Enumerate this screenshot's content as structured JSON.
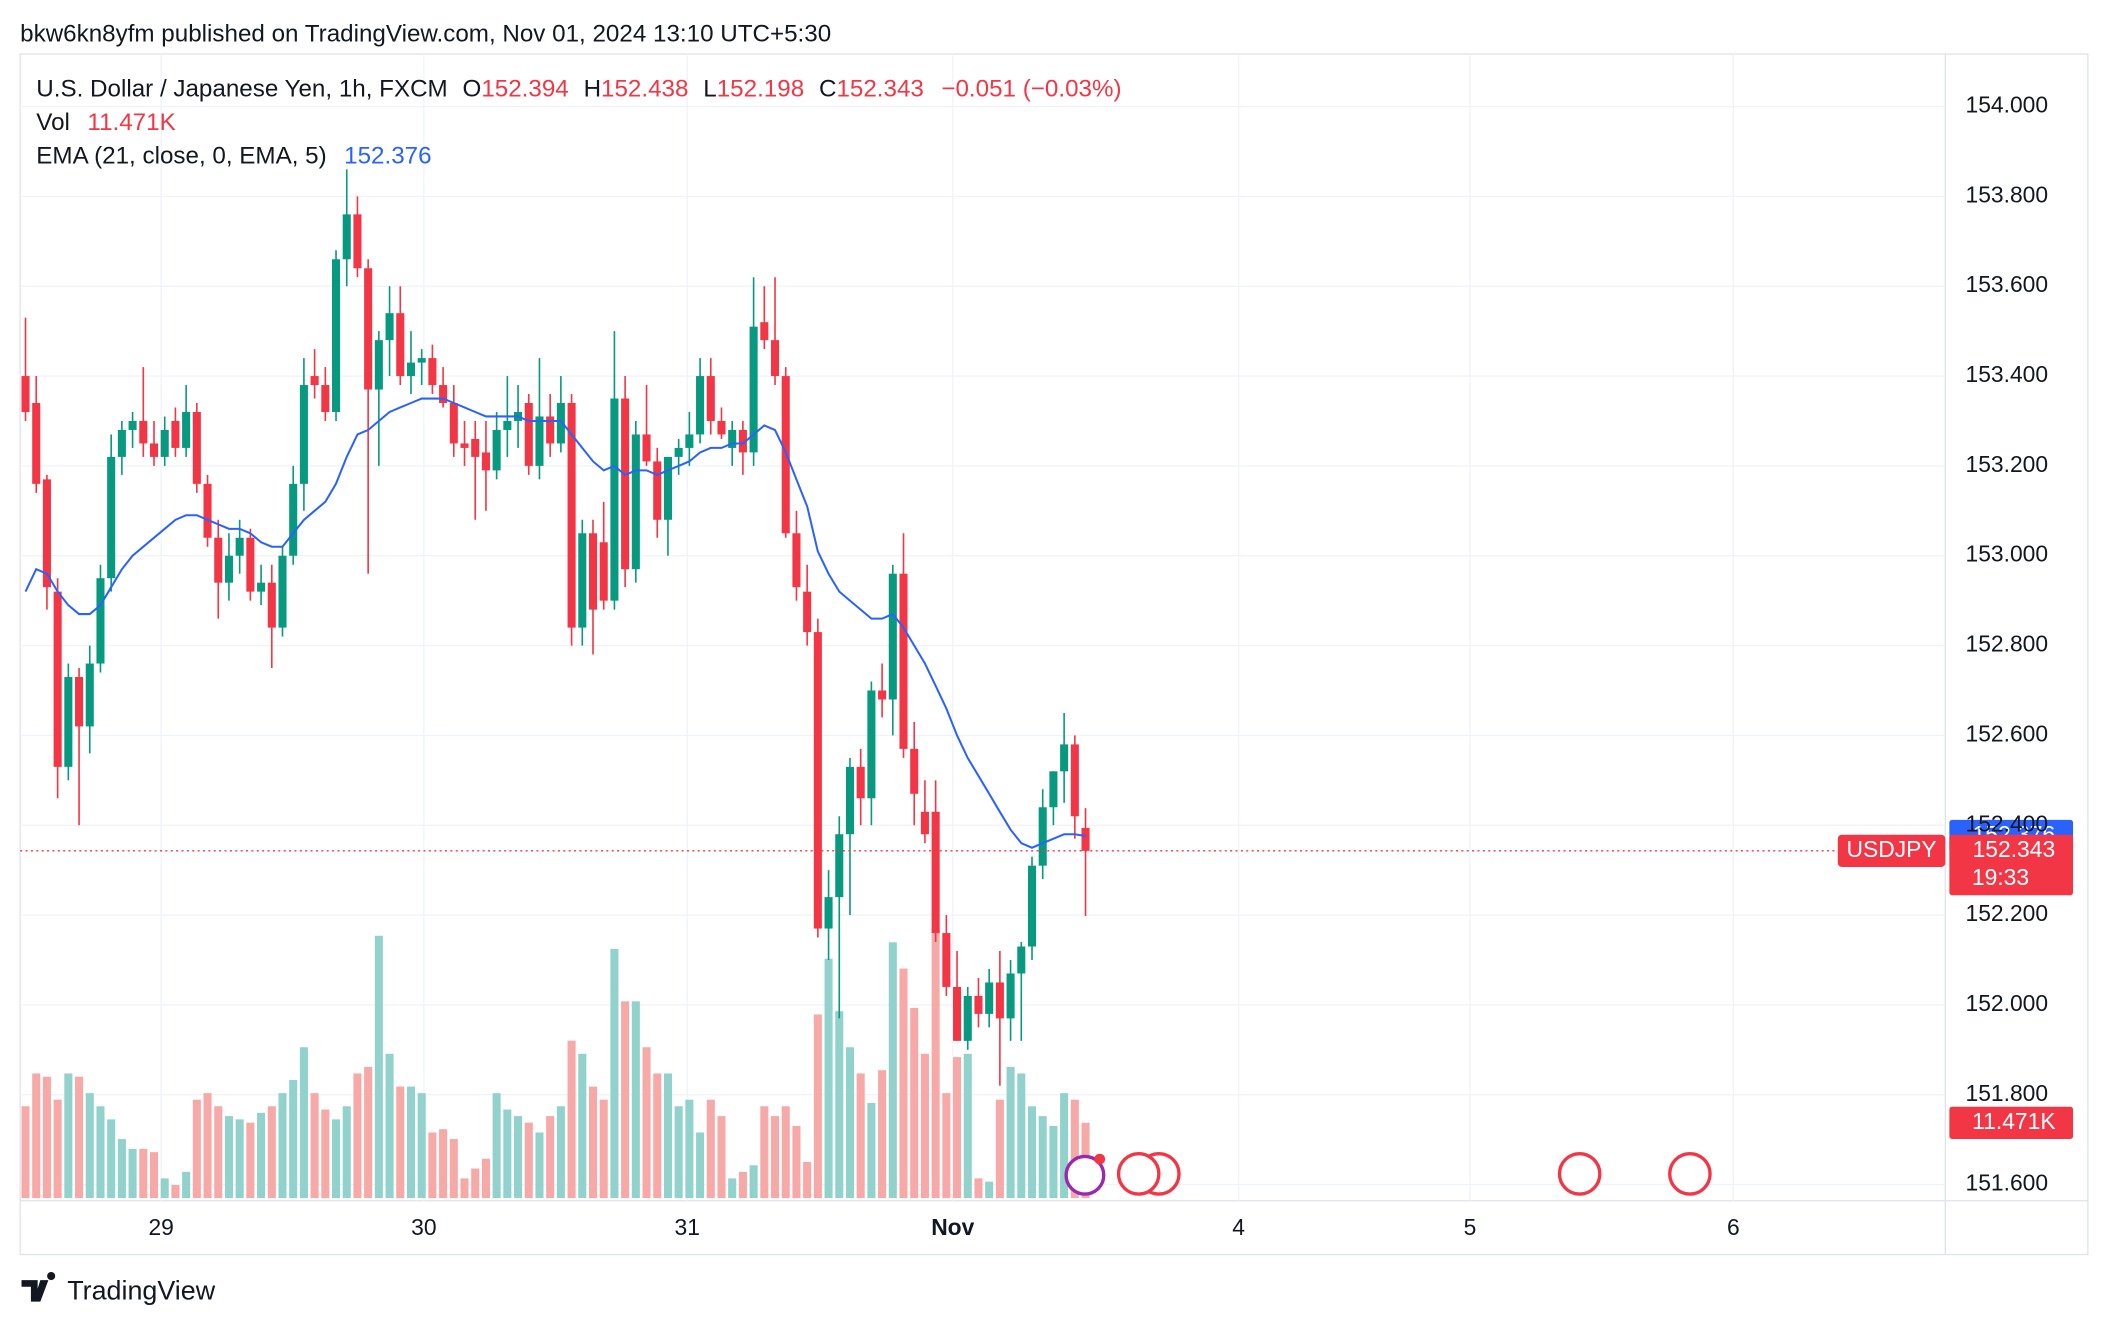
{
  "header": {
    "publisher": "bkw6kn8yfm published on TradingView.com, Nov 01, 2024 13:10 UTC+5:30"
  },
  "footer": {
    "logo": "TradingView"
  },
  "chart_data": {
    "type": "candlestick",
    "symbol_title": "U.S. Dollar / Japanese Yen, 1h, FXCM",
    "symbol": "USDJPY",
    "legend_labels": {
      "open": "O",
      "high": "H",
      "low": "L",
      "close": "C"
    },
    "change_label": "−0.051 (−0.03%)",
    "volume_title": "Vol",
    "volume_last_label": "11.471K",
    "ema_title": "EMA (21, close, 0, EMA, 5)",
    "countdown": "19:33",
    "up_color": "#089981",
    "down_color": "#f23645",
    "up_volume_color": "#92d2cc",
    "down_volume_color": "#f7a9a7",
    "ema_color": "#2962ff",
    "grid": true,
    "open": [
      153.4,
      153.34,
      153.17,
      152.92,
      152.53,
      152.73,
      152.62,
      152.76,
      152.95,
      153.22,
      153.28,
      153.3,
      153.25,
      153.22,
      153.3,
      153.24,
      153.32,
      153.16,
      153.04,
      152.94,
      153.0,
      153.04,
      152.92,
      152.94,
      152.84,
      153.0,
      153.16,
      153.4,
      153.38,
      153.32,
      153.66,
      153.76,
      153.64,
      153.37,
      153.48,
      153.54,
      153.4,
      153.43,
      153.44,
      153.38,
      153.34,
      153.25,
      153.26,
      153.23,
      153.19,
      153.28,
      153.3,
      153.34,
      153.2,
      153.31,
      153.25,
      153.34,
      152.84,
      153.05,
      153.03,
      152.9,
      153.35,
      152.97,
      153.27,
      153.21,
      153.08,
      153.22,
      153.24,
      153.27,
      153.4,
      153.3,
      153.24,
      153.28,
      153.23,
      153.52,
      153.48,
      153.4,
      153.05,
      152.92,
      152.83,
      152.17,
      152.24,
      152.38,
      152.53,
      152.46,
      152.7,
      152.68,
      152.96,
      152.57,
      152.43,
      152.43,
      152.16,
      152.04,
      151.92,
      152.02,
      151.98,
      152.05,
      151.97,
      152.07,
      152.13,
      152.31,
      152.44,
      152.52,
      152.58,
      152.394
    ],
    "high": [
      153.53,
      153.4,
      153.18,
      152.95,
      152.76,
      152.75,
      152.8,
      152.98,
      153.27,
      153.3,
      153.32,
      153.42,
      153.3,
      153.31,
      153.33,
      153.38,
      153.34,
      153.18,
      153.08,
      153.05,
      153.08,
      153.06,
      152.98,
      152.98,
      153.02,
      153.2,
      153.44,
      153.46,
      153.42,
      153.68,
      153.86,
      153.8,
      153.66,
      153.5,
      153.6,
      153.6,
      153.5,
      153.46,
      153.47,
      153.42,
      153.38,
      153.3,
      153.3,
      153.3,
      153.32,
      153.4,
      153.38,
      153.36,
      153.44,
      153.36,
      153.4,
      153.36,
      153.08,
      153.08,
      153.12,
      153.5,
      153.4,
      153.3,
      153.38,
      153.24,
      153.22,
      153.26,
      153.32,
      153.44,
      153.44,
      153.33,
      153.3,
      153.3,
      153.62,
      153.6,
      153.62,
      153.42,
      153.1,
      152.98,
      152.86,
      152.3,
      152.42,
      152.55,
      152.57,
      152.72,
      152.76,
      152.98,
      153.05,
      152.63,
      152.5,
      152.5,
      152.2,
      152.12,
      152.04,
      152.06,
      152.08,
      152.12,
      152.1,
      152.14,
      152.33,
      152.48,
      152.52,
      152.65,
      152.6,
      152.438
    ],
    "low": [
      153.3,
      153.14,
      152.88,
      152.46,
      152.5,
      152.4,
      152.56,
      152.74,
      152.92,
      153.18,
      153.24,
      153.22,
      153.2,
      153.2,
      153.22,
      153.22,
      153.14,
      153.02,
      152.86,
      152.9,
      152.96,
      152.9,
      152.89,
      152.75,
      152.82,
      152.98,
      153.1,
      153.35,
      153.3,
      153.3,
      153.6,
      153.62,
      152.96,
      153.2,
      153.4,
      153.38,
      153.36,
      153.38,
      153.36,
      153.33,
      153.22,
      153.2,
      153.08,
      153.1,
      153.17,
      153.22,
      153.24,
      153.18,
      153.17,
      153.22,
      153.23,
      152.8,
      152.8,
      152.78,
      152.88,
      152.88,
      152.93,
      152.94,
      153.2,
      153.04,
      153.0,
      153.18,
      153.2,
      153.25,
      153.27,
      153.26,
      153.2,
      153.18,
      153.2,
      153.46,
      153.38,
      153.04,
      152.9,
      152.8,
      152.15,
      152.1,
      151.97,
      152.2,
      152.4,
      152.4,
      152.64,
      152.6,
      152.55,
      152.4,
      152.36,
      152.14,
      152.02,
      151.92,
      151.9,
      151.95,
      151.95,
      151.82,
      151.92,
      151.92,
      152.1,
      152.28,
      152.4,
      152.45,
      152.37,
      152.198
    ],
    "close": [
      153.32,
      153.16,
      152.93,
      152.53,
      152.73,
      152.62,
      152.76,
      152.95,
      153.22,
      153.28,
      153.3,
      153.25,
      153.22,
      153.28,
      153.24,
      153.32,
      153.16,
      153.04,
      152.94,
      153.0,
      153.04,
      152.92,
      152.94,
      152.84,
      153.0,
      153.16,
      153.38,
      153.38,
      153.32,
      153.66,
      153.76,
      153.64,
      153.37,
      153.48,
      153.54,
      153.4,
      153.43,
      153.44,
      153.38,
      153.34,
      153.25,
      153.24,
      153.22,
      153.19,
      153.28,
      153.3,
      153.32,
      153.2,
      153.31,
      153.25,
      153.34,
      152.84,
      153.05,
      152.88,
      152.9,
      153.35,
      152.97,
      153.27,
      153.21,
      153.08,
      153.22,
      153.24,
      153.27,
      153.4,
      153.3,
      153.27,
      153.28,
      153.23,
      153.51,
      153.48,
      153.4,
      153.05,
      152.93,
      152.83,
      152.17,
      152.24,
      152.38,
      152.53,
      152.46,
      152.7,
      152.68,
      152.96,
      152.57,
      152.47,
      152.38,
      152.16,
      152.04,
      151.92,
      152.02,
      151.98,
      152.05,
      151.97,
      152.07,
      152.13,
      152.31,
      152.44,
      152.52,
      152.58,
      152.42,
      152.343
    ],
    "volume": [
      14000,
      19000,
      18500,
      15000,
      19000,
      18500,
      16000,
      14000,
      12000,
      9000,
      7500,
      7500,
      7000,
      3000,
      2000,
      4000,
      15000,
      16000,
      14000,
      12500,
      12000,
      11500,
      13000,
      14000,
      16000,
      18000,
      23000,
      16000,
      13500,
      12000,
      14000,
      19000,
      20000,
      40000,
      22000,
      17000,
      17000,
      16000,
      10000,
      10500,
      9000,
      3000,
      4500,
      6000,
      16000,
      13500,
      12500,
      11500,
      10000,
      12500,
      14000,
      24000,
      22000,
      17000,
      15000,
      38000,
      30000,
      30000,
      23000,
      19000,
      19000,
      14000,
      15000,
      10000,
      15000,
      12500,
      3000,
      4000,
      5000,
      14000,
      12500,
      14000,
      11000,
      5500,
      28000,
      36500,
      28500,
      23000,
      19000,
      14500,
      19500,
      39000,
      35000,
      29000,
      22000,
      41000,
      16000,
      21500,
      22000,
      3000,
      2500,
      15000,
      20000,
      19000,
      14000,
      12500,
      11000,
      16000,
      15000,
      11471
    ],
    "ema": [
      152.92,
      152.97,
      152.96,
      152.92,
      152.89,
      152.87,
      152.87,
      152.89,
      152.93,
      152.97,
      153.0,
      153.02,
      153.04,
      153.06,
      153.08,
      153.09,
      153.09,
      153.08,
      153.07,
      153.06,
      153.06,
      153.05,
      153.03,
      153.02,
      153.02,
      153.05,
      153.08,
      153.1,
      153.12,
      153.16,
      153.22,
      153.27,
      153.28,
      153.3,
      153.32,
      153.33,
      153.34,
      153.35,
      153.35,
      153.35,
      153.34,
      153.33,
      153.32,
      153.31,
      153.31,
      153.31,
      153.31,
      153.3,
      153.3,
      153.3,
      153.3,
      153.27,
      153.24,
      153.21,
      153.19,
      153.2,
      153.18,
      153.19,
      153.19,
      153.18,
      153.19,
      153.2,
      153.21,
      153.23,
      153.24,
      153.24,
      153.25,
      153.25,
      153.27,
      153.29,
      153.28,
      153.23,
      153.17,
      153.11,
      153.01,
      152.96,
      152.92,
      152.9,
      152.88,
      152.86,
      152.86,
      152.87,
      152.84,
      152.8,
      152.76,
      152.71,
      152.66,
      152.6,
      152.55,
      152.51,
      152.47,
      152.43,
      152.39,
      152.36,
      152.35,
      152.36,
      152.37,
      152.38,
      152.38,
      152.376
    ],
    "xlim": [
      -0.5,
      179.3
    ],
    "xticks": [
      {
        "value": 12.67,
        "label": "29"
      },
      {
        "value": 37.2,
        "label": "30"
      },
      {
        "value": 61.8,
        "label": "31"
      },
      {
        "value": 86.6,
        "label": "Nov"
      },
      {
        "value": 113.3,
        "label": "4"
      },
      {
        "value": 134.9,
        "label": "5"
      },
      {
        "value": 159.5,
        "label": "6"
      }
    ],
    "ylim": [
      151.564,
      154.117
    ],
    "yticks": [
      {
        "value": 151.6,
        "label": "151.600"
      },
      {
        "value": 151.8,
        "label": "151.800"
      },
      {
        "value": 152.0,
        "label": "152.000"
      },
      {
        "value": 152.2,
        "label": "152.200"
      },
      {
        "value": 152.4,
        "label": "152.400"
      },
      {
        "value": 152.6,
        "label": "152.600"
      },
      {
        "value": 152.8,
        "label": "152.800"
      },
      {
        "value": 153.0,
        "label": "153.000"
      },
      {
        "value": 153.2,
        "label": "153.200"
      },
      {
        "value": 153.4,
        "label": "153.400"
      },
      {
        "value": 153.6,
        "label": "153.600"
      },
      {
        "value": 153.8,
        "label": "153.800"
      },
      {
        "value": 154.0,
        "label": "154.000"
      }
    ]
  }
}
